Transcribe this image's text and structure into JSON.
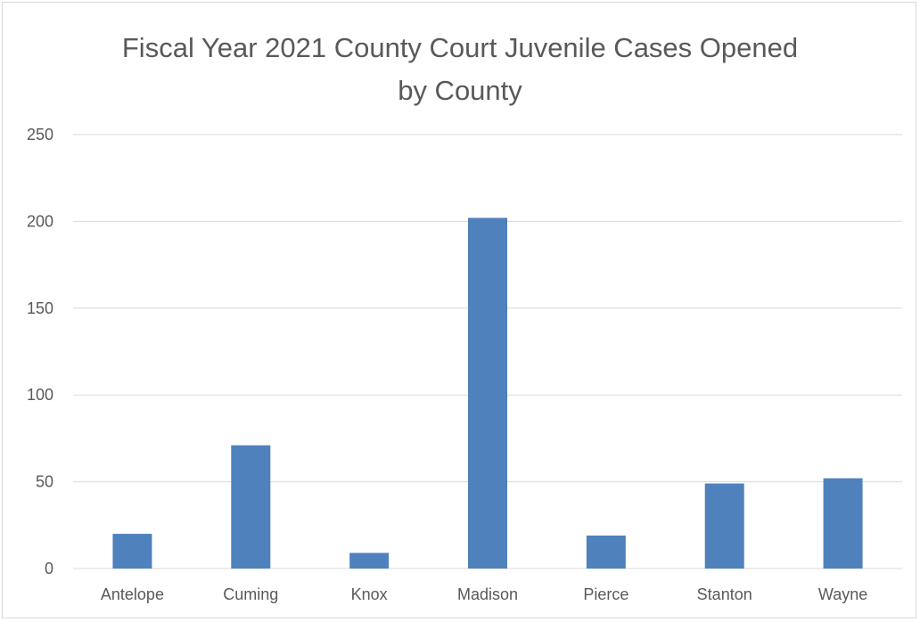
{
  "chart_data": {
    "type": "bar",
    "title_lines": [
      "Fiscal Year 2021 County Court Juvenile Cases Opened",
      "by County"
    ],
    "categories": [
      "Antelope",
      "Cuming",
      "Knox",
      "Madison",
      "Pierce",
      "Stanton",
      "Wayne"
    ],
    "values": [
      20,
      71,
      9,
      202,
      19,
      49,
      52
    ],
    "ylim": [
      0,
      250
    ],
    "yticks": [
      "0",
      "50",
      "100",
      "150",
      "200",
      "250"
    ],
    "grid": true,
    "legend": "none",
    "bar_color": "#4f81bd",
    "grid_color": "#d9d9d9",
    "text_color": "#595959"
  }
}
